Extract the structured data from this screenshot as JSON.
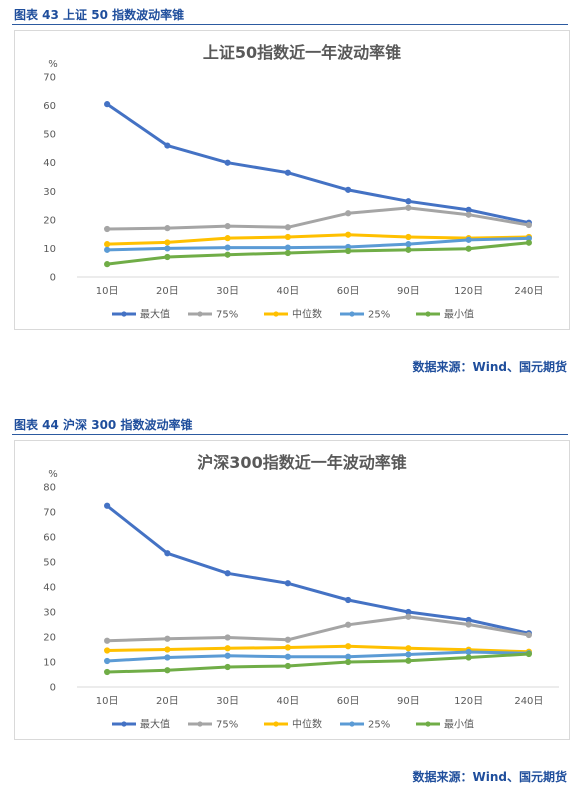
{
  "figures": [
    {
      "caption": "图表 43  上证 50 指数波动率锥",
      "source": "数据来源：Wind、国元期货",
      "chart_data": {
        "type": "line",
        "title": "上证50指数近一年波动率锥",
        "ylabel": "%",
        "ylim": [
          0,
          70
        ],
        "yticks": [
          0,
          10,
          20,
          30,
          40,
          50,
          60,
          70
        ],
        "categories": [
          "10日",
          "20日",
          "30日",
          "40日",
          "60日",
          "90日",
          "120日",
          "240日"
        ],
        "legend_position": "bottom",
        "grid": false,
        "series": [
          {
            "name": "最大值",
            "color": "#4472c4",
            "values": [
              60.5,
              46,
              40,
              36.5,
              30.5,
              26.5,
              23.5,
              19
            ]
          },
          {
            "name": "75%",
            "color": "#a5a5a5",
            "values": [
              16.8,
              17.1,
              17.8,
              17.4,
              22.3,
              24.2,
              21.8,
              18.2
            ]
          },
          {
            "name": "中位数",
            "color": "#ffc000",
            "values": [
              11.5,
              12.1,
              13.6,
              14,
              14.8,
              14,
              13.6,
              14
            ]
          },
          {
            "name": "25%",
            "color": "#5b9bd5",
            "values": [
              9.5,
              10,
              10.3,
              10.3,
              10.5,
              11.5,
              13,
              13.5
            ]
          },
          {
            "name": "最小值",
            "color": "#70ad47",
            "values": [
              4.5,
              7,
              7.8,
              8.4,
              9.1,
              9.5,
              9.9,
              12
            ]
          }
        ]
      }
    },
    {
      "caption": "图表 44  沪深 300 指数波动率锥",
      "source": "数据来源：Wind、国元期货",
      "chart_data": {
        "type": "line",
        "title": "沪深300指数近一年波动率锥",
        "ylabel": "%",
        "ylim": [
          0,
          80
        ],
        "yticks": [
          0,
          10,
          20,
          30,
          40,
          50,
          60,
          70,
          80
        ],
        "categories": [
          "10日",
          "20日",
          "30日",
          "40日",
          "60日",
          "90日",
          "120日",
          "240日"
        ],
        "legend_position": "bottom",
        "grid": false,
        "series": [
          {
            "name": "最大值",
            "color": "#4472c4",
            "values": [
              72.5,
              53.5,
              45.5,
              41.5,
              34.8,
              30,
              26.8,
              21.5
            ]
          },
          {
            "name": "75%",
            "color": "#a5a5a5",
            "values": [
              18.5,
              19.3,
              19.8,
              18.9,
              24.9,
              28.1,
              25,
              20.8
            ]
          },
          {
            "name": "中位数",
            "color": "#ffc000",
            "values": [
              14.6,
              15,
              15.5,
              15.8,
              16.3,
              15.5,
              14.9,
              14.1
            ]
          },
          {
            "name": "25%",
            "color": "#5b9bd5",
            "values": [
              10.4,
              11.8,
              12.5,
              12.1,
              12.1,
              13,
              14,
              13.5
            ]
          },
          {
            "name": "最小值",
            "color": "#70ad47",
            "values": [
              6,
              6.7,
              8,
              8.4,
              10,
              10.5,
              11.8,
              13.2
            ]
          }
        ]
      }
    }
  ]
}
